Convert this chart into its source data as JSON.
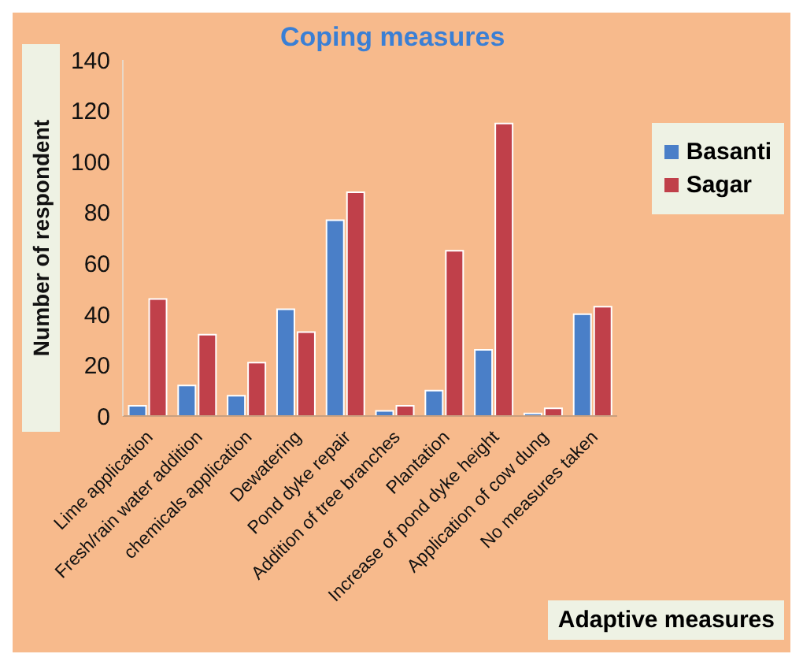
{
  "chart_data": {
    "type": "bar",
    "title": "Coping measures",
    "xlabel": "Adaptive measures",
    "ylabel": "Number of respondent",
    "categories": [
      "Lime application",
      "Fresh/rain water addition",
      "chemicals  application",
      "Dewatering",
      "Pond dyke repair",
      "Addition of tree branches",
      "Plantation",
      "Increase of pond dyke height",
      "Application of cow dung",
      "No measures taken"
    ],
    "series": [
      {
        "name": "Basanti",
        "color": "#4a7fc8",
        "values": [
          4,
          12,
          8,
          42,
          77,
          2,
          10,
          26,
          1,
          40
        ]
      },
      {
        "name": "Sagar",
        "color": "#c0404a",
        "values": [
          46,
          32,
          21,
          33,
          88,
          4,
          65,
          115,
          3,
          43
        ]
      }
    ],
    "ylim": [
      0,
      140
    ],
    "yticks": [
      0,
      20,
      40,
      60,
      80,
      100,
      120,
      140
    ],
    "grid": false,
    "legend": "top right"
  }
}
